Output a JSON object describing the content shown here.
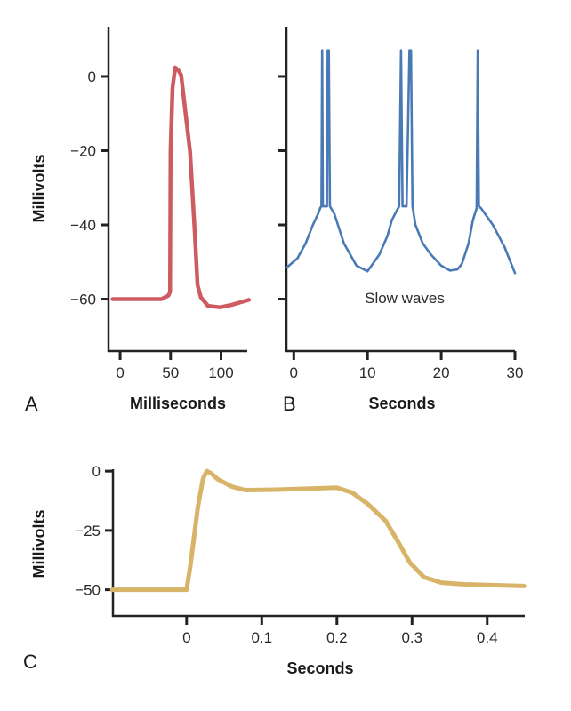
{
  "chart_data": [
    {
      "type": "line",
      "panel_label": "A",
      "xlabel": "Milliseconds",
      "ylabel": "Millivolts",
      "xlim": [
        -11.5,
        126
      ],
      "ylim": [
        -74,
        13.4
      ],
      "xticks": [
        0,
        50,
        100
      ],
      "xtick_labels": [
        "0",
        "50",
        "100"
      ],
      "yticks": [
        0,
        -20,
        -40,
        -60
      ],
      "ytick_labels": [
        "0",
        "−20",
        "−40",
        "−60"
      ],
      "grid": false,
      "color": "#cd5b60",
      "series": [
        {
          "x": [
            -7.4,
            20,
            41,
            48,
            49.5,
            50,
            52,
            54.6,
            58,
            60.4,
            69.3,
            74,
            76.7,
            80,
            87,
            98.8,
            110,
            120,
            127.7
          ],
          "y": [
            -60,
            -60,
            -60,
            -59,
            -58,
            -20,
            -3,
            2.4,
            1.5,
            0.4,
            -20.3,
            -42,
            -56.2,
            -59.5,
            -61.8,
            -62.2,
            -61.6,
            -60.8,
            -60.2
          ]
        }
      ]
    },
    {
      "type": "line",
      "panel_label": "B",
      "xlabel": "Seconds",
      "ylabel": "",
      "xlim": [
        -1,
        30
      ],
      "ylim": [
        -74,
        13.4
      ],
      "xticks": [
        0,
        10,
        20,
        30
      ],
      "xtick_labels": [
        "0",
        "10",
        "20",
        "30"
      ],
      "yticks": [
        0,
        -20,
        -40,
        -60
      ],
      "ytick_labels": [],
      "grid": false,
      "color": "#4a7ab5",
      "annotation": "Slow waves",
      "series": [
        {
          "x": [
            -0.9,
            0.5,
            1.6,
            2.6,
            3.3,
            3.6,
            3.75,
            3.85,
            3.95,
            4.5,
            4.6,
            4.75,
            4.9,
            5.5,
            6.8,
            8.5,
            10,
            11.6,
            12.7,
            13.3,
            14.0,
            14.3,
            14.55,
            14.75,
            15.3,
            15.7,
            15.9,
            16.1,
            16.5,
            17.5,
            18.6,
            20,
            21.2,
            22.2,
            22.8,
            23.7,
            24.3,
            24.8,
            24.95,
            25.1,
            25.4,
            27,
            28.6,
            30
          ],
          "y": [
            -51.4,
            -49,
            -45,
            -40,
            -37,
            -35.4,
            -35,
            7,
            -35,
            -35,
            7,
            7,
            -35,
            -37,
            -45,
            -51,
            -52.5,
            -48,
            -43,
            -38.7,
            -36,
            -35,
            7,
            -35,
            -35,
            7,
            7,
            -35,
            -40,
            -45,
            -48,
            -51,
            -52.3,
            -52,
            -50.5,
            -45,
            -38.7,
            -35.5,
            7,
            -35,
            -35.5,
            -40,
            -46,
            -53
          ]
        }
      ]
    },
    {
      "type": "line",
      "panel_label": "C",
      "xlabel": "Seconds",
      "ylabel": "Millivolts",
      "xlim": [
        -0.098,
        0.45
      ],
      "ylim": [
        -61,
        0.8
      ],
      "xticks": [
        0,
        0.1,
        0.2,
        0.3,
        0.4
      ],
      "xtick_labels": [
        "0",
        "0.1",
        "0.2",
        "0.3",
        "0.4"
      ],
      "yticks": [
        0,
        -25,
        -50
      ],
      "ytick_labels": [
        "0",
        "−25",
        "−50"
      ],
      "grid": false,
      "color": "#d8b468",
      "series": [
        {
          "x": [
            -0.099,
            -0.05,
            0,
            0.005,
            0.015,
            0.022,
            0.027,
            0.033,
            0.041,
            0.06,
            0.078,
            0.12,
            0.16,
            0.2,
            0.22,
            0.241,
            0.265,
            0.28,
            0.297,
            0.316,
            0.339,
            0.37,
            0.4,
            0.449
          ],
          "y": [
            -50,
            -50,
            -50,
            -40,
            -15,
            -3,
            0,
            -1,
            -3.3,
            -6.5,
            -8,
            -7.8,
            -7.4,
            -7,
            -9,
            -13.8,
            -21,
            -29,
            -38.5,
            -44.7,
            -47,
            -47.7,
            -48,
            -48.4
          ]
        }
      ]
    }
  ]
}
